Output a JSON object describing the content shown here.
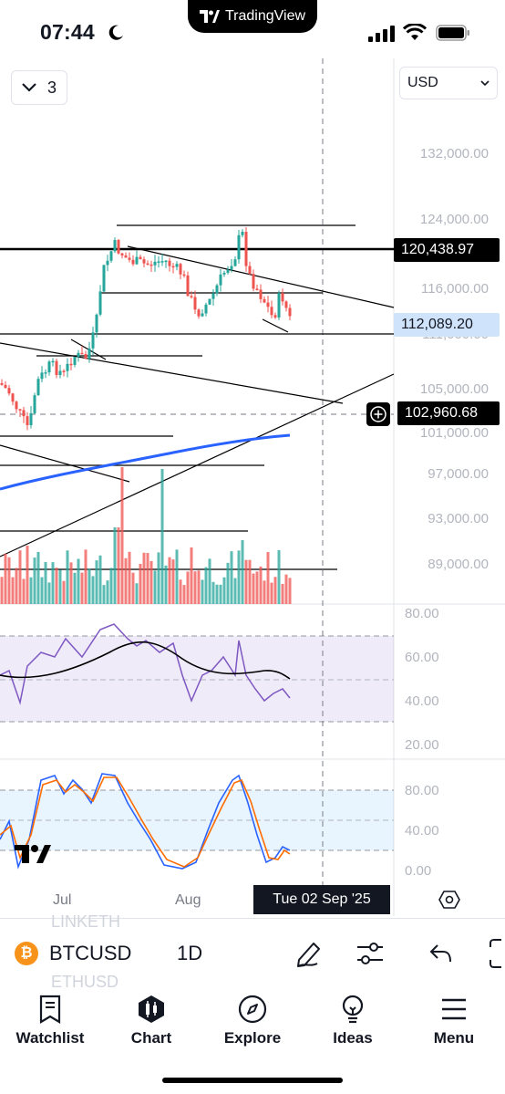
{
  "status_bar": {
    "time": "07:44",
    "app_name": "TradingView"
  },
  "chart": {
    "interval_count": "3",
    "currency": "USD",
    "price_scale": [
      "132,000.00",
      "124,000.00",
      "116,000.00",
      "111,000.00",
      "105,000.00",
      "101,000.00",
      "97,000.00",
      "93,000.00",
      "89,000.00"
    ],
    "tag_high": "120,438.97",
    "tag_last": "112,089.20",
    "tag_crosshair": "102,960.68",
    "rsi_scale": [
      "80.00",
      "60.00",
      "40.00",
      "20.00"
    ],
    "stoch_scale": [
      "80.00",
      "40.00",
      "0.00"
    ],
    "x_labels": [
      "Jul",
      "Aug"
    ],
    "crosshair_date": "Tue 02 Sep '25",
    "accent_color": "#2962ff",
    "up_color": "#26a69a",
    "down_color": "#ef5350"
  },
  "symbol_bar": {
    "ghost_symbol_1": "LINKETH",
    "ghost_symbol_2": "ETHUSD",
    "coin_glyph": "₿",
    "symbol": "BTCUSD",
    "timeframe": "1D"
  },
  "tab_bar": {
    "watchlist": "Watchlist",
    "chart": "Chart",
    "explore": "Explore",
    "ideas": "Ideas",
    "menu": "Menu"
  }
}
